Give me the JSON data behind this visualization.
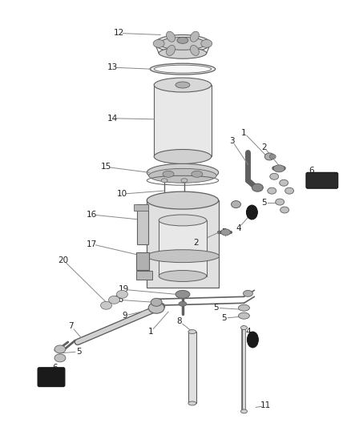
{
  "bg_color": "#ffffff",
  "lc": "#888888",
  "pc": "#606060",
  "dc": "#1a1a1a",
  "gray1": "#c8c8c8",
  "gray2": "#a0a0a0",
  "gray3": "#d8d8d8",
  "figsize": [
    4.38,
    5.33
  ],
  "dpi": 100
}
